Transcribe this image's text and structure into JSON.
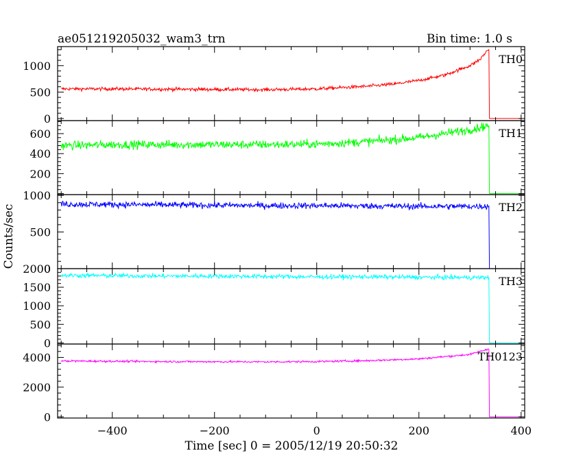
{
  "chart_data": {
    "type": "line",
    "title": "ae051219205032_wam3_trn",
    "subtitle": "Bin time: 1.0 s",
    "xlabel": "Time [sec] 0 = 2005/12/19 20:50:32",
    "ylabel": "Counts/sec",
    "xlim": [
      -507,
      407
    ],
    "x_ticks": [
      -400,
      -200,
      0,
      200,
      400
    ],
    "grid": false,
    "panels": [
      {
        "name": "TH0",
        "color": "#ff0000",
        "ylim": [
          -40,
          1360
        ],
        "y_ticks": [
          0,
          500,
          1000
        ],
        "points": [
          [
            -500,
            560
          ],
          [
            -400,
            560
          ],
          [
            -300,
            555
          ],
          [
            -200,
            550
          ],
          [
            -100,
            545
          ],
          [
            0,
            560
          ],
          [
            100,
            610
          ],
          [
            150,
            650
          ],
          [
            200,
            720
          ],
          [
            250,
            820
          ],
          [
            300,
            1000
          ],
          [
            320,
            1120
          ],
          [
            335,
            1300
          ]
        ],
        "noise": 32,
        "drop_at": 337,
        "after_value": 0
      },
      {
        "name": "TH1",
        "color": "#00ff00",
        "ylim": [
          -10,
          730
        ],
        "y_ticks": [
          200,
          400,
          600
        ],
        "points": [
          [
            -500,
            480
          ],
          [
            -400,
            490
          ],
          [
            -300,
            490
          ],
          [
            -200,
            490
          ],
          [
            -100,
            490
          ],
          [
            0,
            495
          ],
          [
            100,
            520
          ],
          [
            200,
            560
          ],
          [
            250,
            600
          ],
          [
            300,
            640
          ],
          [
            335,
            680
          ]
        ],
        "noise": 42,
        "drop_at": 337,
        "after_value": 0
      },
      {
        "name": "TH2",
        "color": "#0000ff",
        "ylim": [
          0,
          1010
        ],
        "y_ticks": [
          0,
          500,
          1000
        ],
        "points": [
          [
            -500,
            880
          ],
          [
            -400,
            875
          ],
          [
            -300,
            870
          ],
          [
            -200,
            865
          ],
          [
            -100,
            860
          ],
          [
            0,
            860
          ],
          [
            100,
            855
          ],
          [
            200,
            850
          ],
          [
            300,
            850
          ],
          [
            335,
            850
          ]
        ],
        "noise": 42,
        "drop_at": 337,
        "after_value": 0
      },
      {
        "name": "TH3",
        "color": "#00ffff",
        "ylim": [
          -30,
          2000
        ],
        "y_ticks": [
          0,
          500,
          1000,
          1500,
          2000
        ],
        "points": [
          [
            -500,
            1820
          ],
          [
            -400,
            1810
          ],
          [
            -300,
            1800
          ],
          [
            -200,
            1800
          ],
          [
            -100,
            1790
          ],
          [
            0,
            1780
          ],
          [
            100,
            1780
          ],
          [
            200,
            1770
          ],
          [
            300,
            1760
          ],
          [
            335,
            1760
          ]
        ],
        "noise": 60,
        "drop_at": 337,
        "after_value": 0
      },
      {
        "name": "TH0123",
        "color": "#ff00ff",
        "ylim": [
          -80,
          4900
        ],
        "y_ticks": [
          0,
          2000,
          4000
        ],
        "points": [
          [
            -500,
            3760
          ],
          [
            -400,
            3740
          ],
          [
            -300,
            3720
          ],
          [
            -200,
            3710
          ],
          [
            -100,
            3700
          ],
          [
            0,
            3720
          ],
          [
            100,
            3780
          ],
          [
            200,
            3900
          ],
          [
            300,
            4200
          ],
          [
            335,
            4550
          ]
        ],
        "noise": 65,
        "drop_at": 337,
        "after_value": 0
      }
    ]
  }
}
